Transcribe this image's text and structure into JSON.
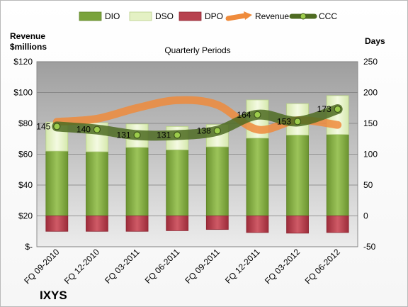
{
  "chart_data": {
    "type": "bar",
    "title": "Quarterly Periods",
    "company": "IXYS",
    "left_axis_label": [
      "Revenue",
      "$millions"
    ],
    "right_axis_label": "Days",
    "categories": [
      "FQ 09-2010",
      "FQ 12-2010",
      "FQ 03-2011",
      "FQ 06-2011",
      "FQ 09-2011",
      "FQ 12-2011",
      "FQ 03-2012",
      "FQ 06-2012"
    ],
    "left_ticks": [
      "$-",
      "$20",
      "$40",
      "$60",
      "$80",
      "$100",
      "$120"
    ],
    "right_ticks": [
      "-50",
      "0",
      "50",
      "100",
      "150",
      "200",
      "250"
    ],
    "ylim_left": [
      0,
      120
    ],
    "ylim_right": [
      -50,
      250
    ],
    "legend_position": "top",
    "grid": true,
    "series": [
      {
        "name": "DIO",
        "axis": "right",
        "color": "#7aa33c",
        "values": [
          105,
          104,
          111,
          107,
          112,
          126,
          131,
          132
        ]
      },
      {
        "name": "DSO",
        "axis": "right",
        "color": "#e4f1c4",
        "values": [
          47,
          47,
          38,
          38,
          36,
          62,
          51,
          63
        ]
      },
      {
        "name": "DPO",
        "axis": "right",
        "color": "#b7414e",
        "values": [
          -25,
          -25,
          -25,
          -24,
          -22,
          -27,
          -28,
          -27
        ]
      },
      {
        "name": "Revenue",
        "axis": "left",
        "color": "#ef8b3c",
        "values": [
          81,
          83,
          90,
          95,
          92,
          76,
          82,
          79
        ]
      },
      {
        "name": "CCC",
        "axis": "right",
        "color": "#4e6b22",
        "values": [
          145,
          140,
          131,
          131,
          138,
          164,
          153,
          173
        ],
        "labels": [
          "145",
          "140",
          "131",
          "131",
          "138",
          "164",
          "153",
          "173"
        ]
      }
    ]
  }
}
